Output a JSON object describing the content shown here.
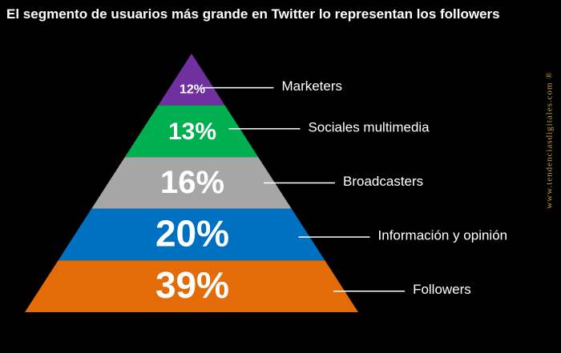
{
  "chart_data": {
    "type": "pyramid",
    "title": "El segmento de usuarios más grande en Twitter lo representan los followers",
    "categories": [
      "Marketers",
      "Sociales multimedia",
      "Broadcasters",
      "Información y opinión",
      "Followers"
    ],
    "values": [
      12,
      13,
      16,
      20,
      39
    ],
    "value_labels": [
      "12%",
      "13%",
      "16%",
      "20%",
      "39%"
    ],
    "colors": [
      "#7030a0",
      "#00b050",
      "#a6a6a6",
      "#0070c0",
      "#e36c09"
    ],
    "watermark": "www.tendenciasdigitales.com ®"
  }
}
